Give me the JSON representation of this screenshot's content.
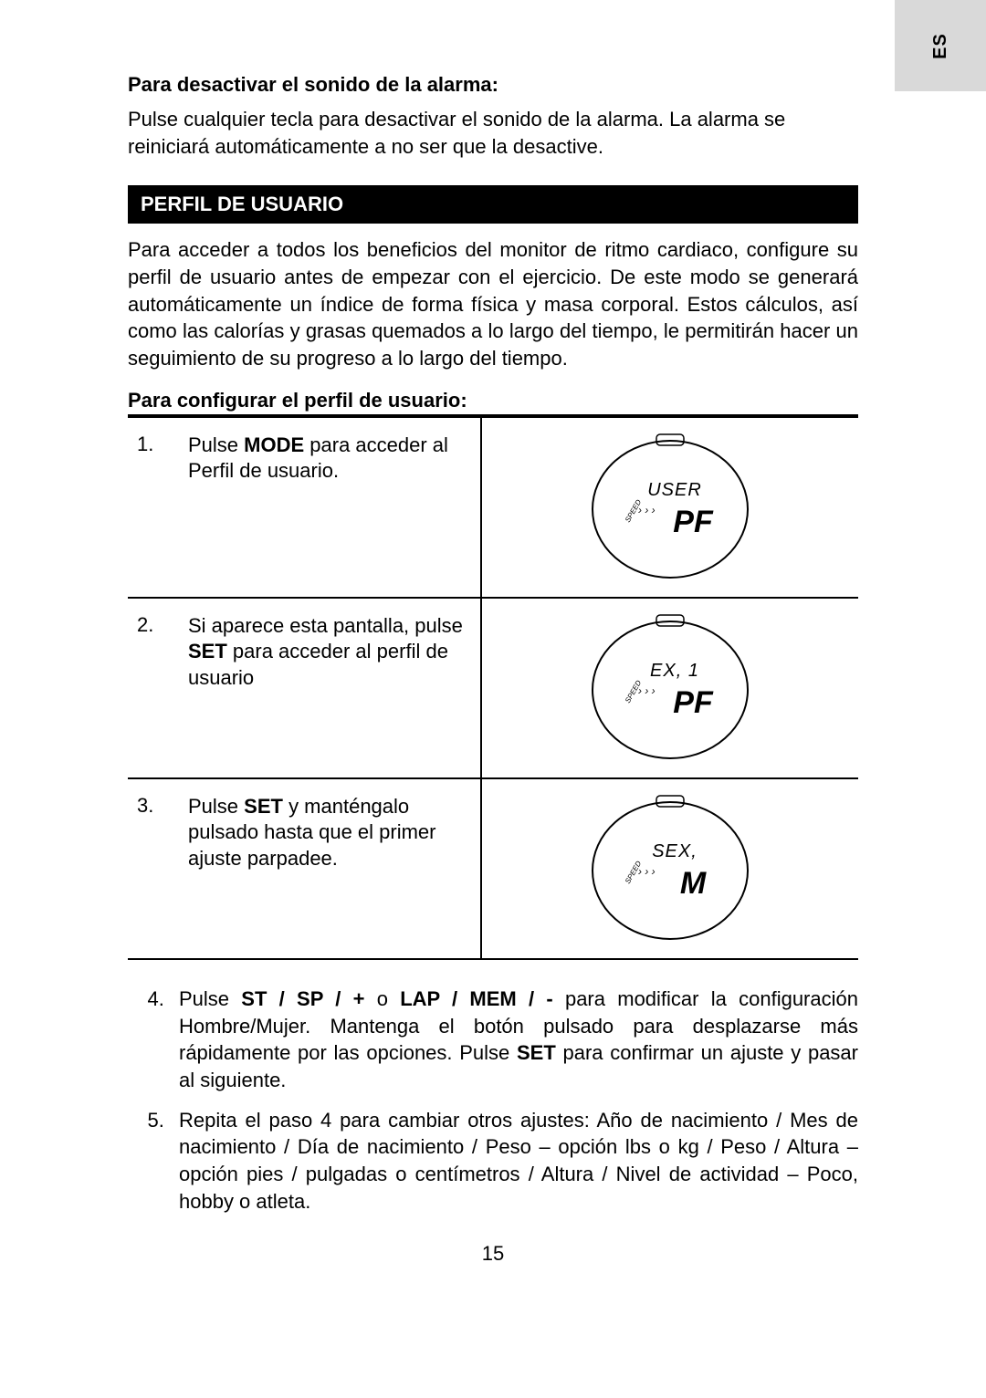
{
  "sideTab": "ES",
  "heading1": "Para desactivar el sonido de la alarma:",
  "para1": "Pulse cualquier tecla para desactivar el sonido de la alarma. La alarma se reiniciará automáticamente a no ser que la desactive.",
  "sectionBar": "PERFIL DE USUARIO",
  "para2": "Para acceder a todos los beneficios del monitor de ritmo cardiaco, configure su perfil de usuario antes de empezar con el ejercicio. De este modo se generará automáticamente un índice de forma física y masa corporal. Estos cálculos, así como las calorías y grasas quemados a lo largo del tiempo, le permitirán hacer un seguimiento de su progreso a lo largo del tiempo.",
  "subheading": "Para configurar el perfil de usuario:",
  "steps": [
    {
      "num": "1.",
      "pre": "Pulse ",
      "bold": "MODE",
      "post": " para acceder al Perfil de usuario.",
      "display_top": "USER",
      "display_bottom": "PF"
    },
    {
      "num": "2.",
      "pre": "Si aparece esta pantalla, pulse ",
      "bold": "SET",
      "post": " para acceder al perfil de usuario",
      "display_top": "EX, 1",
      "display_bottom": "PF"
    },
    {
      "num": "3.",
      "pre": "Pulse ",
      "bold": "SET",
      "post": " y manténgalo pulsado hasta que el primer ajuste parpadee.",
      "display_top": "SEX,",
      "display_bottom": "M"
    }
  ],
  "step4": {
    "num": "4.",
    "pre": "Pulse ",
    "b1": "ST / SP / +",
    "mid1": " o ",
    "b2": "LAP / MEM / -",
    "mid2": " para modificar la configuración Hombre/Mujer. Mantenga el botón pulsado para desplazarse más rápidamente por las opciones. Pulse ",
    "b3": "SET",
    "post": " para confirmar un ajuste y pasar al siguiente."
  },
  "step5": "Repita el paso 4 para cambiar otros ajustes: Año de nacimiento / Mes de nacimiento / Día de nacimiento / Peso – opción lbs o kg / Peso / Altura – opción pies / pulgadas o centímetros / Altura / Nivel de actividad – Poco, hobby o atleta.",
  "pageNum": "15",
  "watch": {
    "stroke": "#000000",
    "stroke_width": 2,
    "speed_label": "SPEED",
    "arrows": "› › ›",
    "top_font": "italic 20px Arial",
    "bottom_font": "bold italic 34px Arial"
  }
}
